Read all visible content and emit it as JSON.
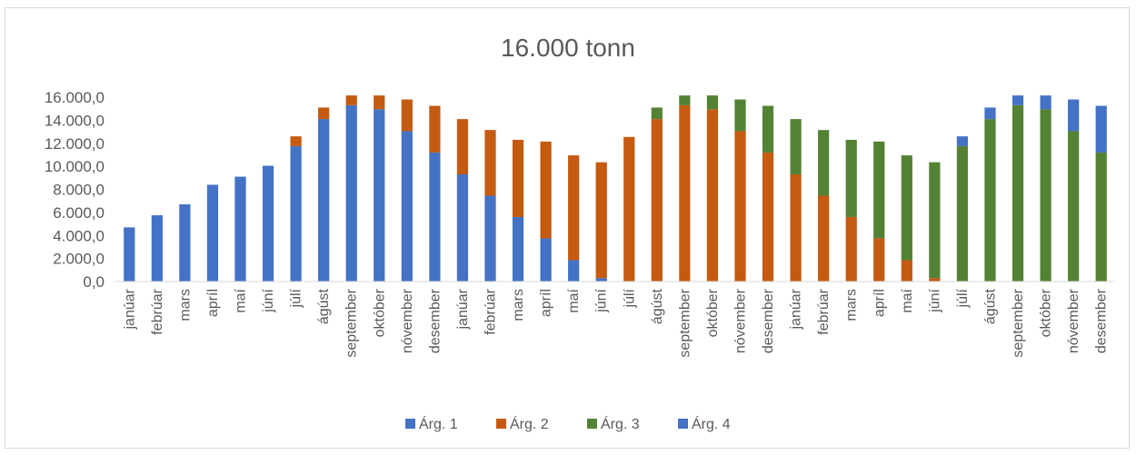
{
  "chart_data": {
    "type": "bar",
    "stacked": true,
    "title": "16.000 tonn",
    "ylim": [
      0,
      16000
    ],
    "yticks": [
      "0,0",
      "2.000,0",
      "4.000,0",
      "6.000,0",
      "8.000,0",
      "10.000,0",
      "12.000,0",
      "14.000,0",
      "16.000,0"
    ],
    "grid": false,
    "legend_position": "bottom",
    "categories": [
      "janúar",
      "febrúar",
      "mars",
      "apríl",
      "maí",
      "júní",
      "júlí",
      "ágúst",
      "september",
      "október",
      "nóvember",
      "desember",
      "janúar",
      "febrúar",
      "mars",
      "apríl",
      "maí",
      "júní",
      "júlí",
      "ágúst",
      "september",
      "október",
      "nóvember",
      "desember",
      "janúar",
      "febrúar",
      "mars",
      "apríl",
      "maí",
      "júní",
      "júlí",
      "ágúst",
      "september",
      "október",
      "nóvember",
      "desember"
    ],
    "series": [
      {
        "name": "Árg. 1",
        "color": "#4472c4",
        "values": [
          4700,
          5750,
          6700,
          8400,
          9100,
          10050,
          11750,
          14100,
          15300,
          14950,
          13050,
          11200,
          9300,
          7450,
          5600,
          3750,
          1850,
          300,
          0,
          0,
          0,
          0,
          0,
          0,
          0,
          0,
          0,
          0,
          0,
          0,
          0,
          0,
          0,
          0,
          0,
          0
        ]
      },
      {
        "name": "Árg. 2",
        "color": "#c55a11",
        "values": [
          0,
          0,
          0,
          0,
          0,
          0,
          850,
          1000,
          850,
          1200,
          2750,
          4050,
          4800,
          5700,
          6700,
          8400,
          9100,
          10050,
          12550,
          14100,
          15300,
          14950,
          13050,
          11200,
          9300,
          7450,
          5600,
          3750,
          1850,
          300,
          0,
          0,
          0,
          0,
          0,
          0
        ]
      },
      {
        "name": "Árg. 3",
        "color": "#548235",
        "values": [
          0,
          0,
          0,
          0,
          0,
          0,
          0,
          0,
          0,
          0,
          0,
          0,
          0,
          0,
          0,
          0,
          0,
          0,
          0,
          1000,
          850,
          1200,
          2750,
          4050,
          4800,
          5700,
          6700,
          8400,
          9100,
          10050,
          11750,
          14100,
          15300,
          14950,
          13050,
          11200
        ]
      },
      {
        "name": "Árg. 4",
        "color": "#4472c4",
        "values": [
          0,
          0,
          0,
          0,
          0,
          0,
          0,
          0,
          0,
          0,
          0,
          0,
          0,
          0,
          0,
          0,
          0,
          0,
          0,
          0,
          0,
          0,
          0,
          0,
          0,
          0,
          0,
          0,
          0,
          0,
          850,
          1000,
          850,
          1200,
          2750,
          4050
        ]
      }
    ]
  }
}
